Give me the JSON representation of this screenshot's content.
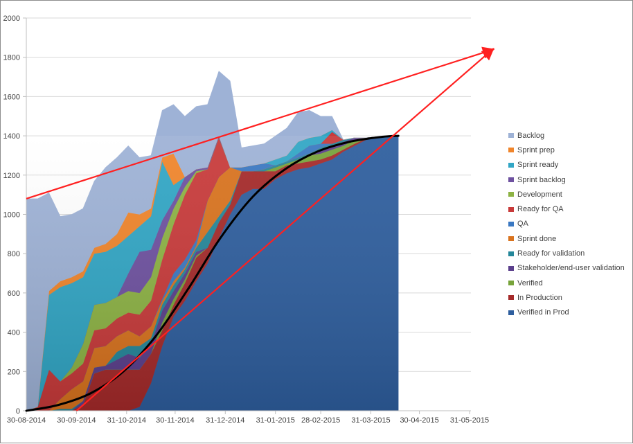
{
  "chart_data": {
    "type": "area",
    "title": "",
    "subtitle": "",
    "xlabel": "",
    "ylabel": "",
    "ylim": [
      0,
      2000
    ],
    "yticks": [
      0,
      200,
      400,
      600,
      800,
      1000,
      1200,
      1400,
      1600,
      1800,
      2000
    ],
    "xtick_labels": [
      "30-08-2014",
      "30-09-2014",
      "31-10-2014",
      "30-11-2014",
      "31-12-2014",
      "31-01-2015",
      "28-02-2015",
      "31-03-2015",
      "30-04-2015",
      "31-05-2015"
    ],
    "xtick_days": [
      0,
      31,
      62,
      92,
      123,
      154,
      182,
      213,
      243,
      274
    ],
    "grid": "horizontal",
    "legend_position": "right",
    "stacking": "cumulative-flow (stacked, bottom series listed last)",
    "x_days": [
      0,
      7,
      14,
      21,
      28,
      35,
      42,
      49,
      56,
      63,
      70,
      77,
      84,
      91,
      98,
      105,
      112,
      119,
      126,
      133,
      140,
      147,
      154,
      161,
      168,
      175,
      182,
      189,
      196,
      203,
      210,
      217,
      224,
      230
    ],
    "series": [
      {
        "name": "Verified in Prod",
        "color": "#2E5E9E",
        "values": [
          0,
          0,
          0,
          0,
          0,
          0,
          0,
          0,
          0,
          0,
          20,
          140,
          330,
          480,
          560,
          660,
          750,
          880,
          1000,
          1100,
          1130,
          1130,
          1180,
          1210,
          1230,
          1240,
          1260,
          1280,
          1320,
          1350,
          1380,
          1390,
          1395,
          1400
        ]
      },
      {
        "name": "In Production",
        "color": "#A52A2A",
        "values": [
          0,
          0,
          0,
          0,
          0,
          30,
          190,
          210,
          210,
          210,
          190,
          150,
          80,
          60,
          90,
          120,
          80,
          80,
          50,
          120,
          90,
          90,
          40,
          40,
          30,
          30,
          20,
          20,
          10,
          10,
          5,
          5,
          3,
          0
        ]
      },
      {
        "name": "Verified",
        "color": "#77A33A",
        "values": [
          0,
          0,
          0,
          0,
          0,
          0,
          0,
          0,
          0,
          0,
          0,
          0,
          40,
          30,
          20,
          10,
          0,
          0,
          0,
          0,
          0,
          0,
          20,
          10,
          20,
          30,
          30,
          30,
          20,
          20,
          5,
          0,
          0,
          0
        ]
      },
      {
        "name": "Stakeholder/end-user validation",
        "color": "#5B3F8C",
        "values": [
          0,
          0,
          0,
          0,
          0,
          20,
          30,
          20,
          50,
          80,
          60,
          50,
          60,
          40,
          30,
          20,
          0,
          0,
          0,
          0,
          0,
          0,
          0,
          0,
          0,
          0,
          20,
          20,
          20,
          10,
          0,
          0,
          0,
          0
        ]
      },
      {
        "name": "Ready for validation",
        "color": "#25879A",
        "values": [
          0,
          0,
          0,
          10,
          10,
          0,
          0,
          0,
          40,
          40,
          60,
          30,
          30,
          30,
          20,
          20,
          80,
          30,
          20,
          0,
          0,
          10,
          10,
          10,
          10,
          10,
          10,
          10,
          10,
          0,
          0,
          0,
          0,
          0
        ]
      },
      {
        "name": "Sprint done",
        "color": "#D9731E",
        "values": [
          0,
          0,
          0,
          50,
          100,
          100,
          100,
          100,
          80,
          80,
          50,
          60,
          20,
          20,
          10,
          10,
          160,
          200,
          170,
          0,
          0,
          0,
          0,
          0,
          0,
          0,
          0,
          0,
          0,
          0,
          0,
          0,
          0,
          0
        ]
      },
      {
        "name": "QA",
        "color": "#3A78C2",
        "values": [
          0,
          0,
          0,
          0,
          0,
          0,
          0,
          0,
          0,
          0,
          0,
          0,
          10,
          40,
          40,
          30,
          0,
          0,
          0,
          20,
          30,
          30,
          0,
          0,
          20,
          40,
          20,
          0,
          0,
          0,
          0,
          0,
          0,
          0
        ]
      },
      {
        "name": "Ready for QA",
        "color": "#C83A3A",
        "values": [
          0,
          20,
          210,
          90,
          80,
          90,
          90,
          90,
          90,
          90,
          110,
          130,
          200,
          250,
          330,
          340,
          160,
          200,
          0,
          0,
          0,
          0,
          0,
          0,
          0,
          0,
          0,
          60,
          0,
          0,
          0,
          0,
          0,
          0
        ]
      },
      {
        "name": "Development",
        "color": "#8DB344",
        "values": [
          0,
          0,
          0,
          0,
          30,
          100,
          130,
          130,
          110,
          110,
          110,
          120,
          110,
          80,
          40,
          10,
          0,
          0,
          0,
          0,
          0,
          0,
          0,
          0,
          0,
          0,
          0,
          0,
          0,
          0,
          0,
          0,
          0,
          0
        ]
      },
      {
        "name": "Sprint backlog",
        "color": "#6E51A0",
        "values": [
          0,
          0,
          0,
          0,
          0,
          0,
          0,
          0,
          0,
          90,
          210,
          140,
          90,
          40,
          50,
          10,
          10,
          10,
          0,
          0,
          0,
          0,
          0,
          0,
          0,
          0,
          0,
          0,
          0,
          0,
          0,
          0,
          0,
          0
        ]
      },
      {
        "name": "Sprint ready",
        "color": "#31A6C5",
        "values": [
          0,
          0,
          380,
          480,
          430,
          340,
          260,
          260,
          260,
          190,
          130,
          170,
          300,
          80,
          0,
          0,
          0,
          0,
          0,
          0,
          0,
          0,
          30,
          30,
          60,
          40,
          40,
          10,
          0,
          0,
          0,
          0,
          0,
          0
        ]
      },
      {
        "name": "Sprint prep",
        "color": "#F0852B",
        "values": [
          0,
          0,
          20,
          30,
          30,
          30,
          30,
          40,
          60,
          120,
          60,
          40,
          20,
          160,
          0,
          0,
          0,
          0,
          0,
          0,
          0,
          0,
          0,
          0,
          0,
          0,
          0,
          0,
          0,
          0,
          0,
          0,
          0,
          0
        ]
      },
      {
        "name": "Backlog",
        "color": "#9EB2D6",
        "values": [
          1080,
          1060,
          500,
          330,
          320,
          320,
          340,
          390,
          390,
          340,
          290,
          270,
          240,
          250,
          310,
          320,
          320,
          330,
          440,
          100,
          100,
          100,
          120,
          140,
          150,
          140,
          100,
          70,
          0,
          0,
          0,
          0,
          0,
          0
        ]
      }
    ],
    "overlays": [
      {
        "name": "trend-curve",
        "type": "line",
        "color": "#000000",
        "points": [
          [
            0,
            0
          ],
          [
            20,
            30
          ],
          [
            40,
            90
          ],
          [
            60,
            200
          ],
          [
            80,
            380
          ],
          [
            100,
            620
          ],
          [
            120,
            880
          ],
          [
            140,
            1090
          ],
          [
            160,
            1230
          ],
          [
            180,
            1320
          ],
          [
            200,
            1370
          ],
          [
            220,
            1395
          ],
          [
            230,
            1400
          ]
        ]
      },
      {
        "name": "scope-projection-arrow",
        "type": "arrow",
        "color": "#FF2020",
        "from": [
          0,
          1080
        ],
        "to": [
          275,
          1820
        ]
      },
      {
        "name": "velocity-projection-arrow",
        "type": "arrow",
        "color": "#FF2020",
        "from": [
          31,
          0
        ],
        "to": [
          275,
          1820
        ]
      }
    ]
  },
  "legend": {
    "items": [
      {
        "label": "Backlog",
        "color": "#9EB2D6"
      },
      {
        "label": "Sprint prep",
        "color": "#F0852B"
      },
      {
        "label": "Sprint ready",
        "color": "#31A6C5"
      },
      {
        "label": "Sprint backlog",
        "color": "#6E51A0"
      },
      {
        "label": "Development",
        "color": "#8DB344"
      },
      {
        "label": "Ready for QA",
        "color": "#C83A3A"
      },
      {
        "label": "QA",
        "color": "#3A78C2"
      },
      {
        "label": "Sprint done",
        "color": "#D9731E"
      },
      {
        "label": "Ready for validation",
        "color": "#25879A"
      },
      {
        "label": "Stakeholder/end-user validation",
        "color": "#5B3F8C"
      },
      {
        "label": "Verified",
        "color": "#77A33A"
      },
      {
        "label": "In Production",
        "color": "#A52A2A"
      },
      {
        "label": "Verified in Prod",
        "color": "#2E5E9E"
      }
    ]
  }
}
